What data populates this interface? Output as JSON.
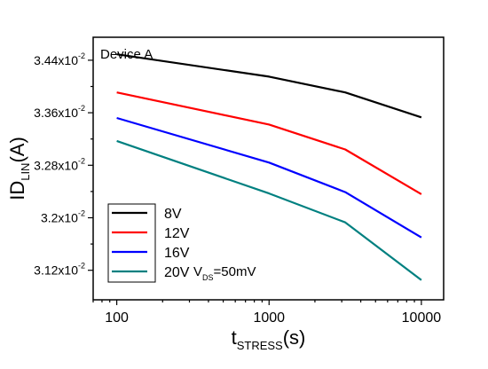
{
  "chart_data": {
    "type": "line",
    "title": "",
    "xlabel": {
      "main": "t",
      "sub": "STRESS",
      "unit": "(s)"
    },
    "ylabel": {
      "main": "ID",
      "sub": "LIN",
      "unit": "(A)"
    },
    "xscale": "log",
    "xlim": [
      70,
      14000
    ],
    "ylim": [
      0.03075,
      0.03475
    ],
    "grid": false,
    "xticks": [
      {
        "value": 100,
        "label": "100"
      },
      {
        "value": 1000,
        "label": "1000"
      },
      {
        "value": 10000,
        "label": "10000"
      }
    ],
    "yticks": [
      {
        "value": 0.0312,
        "mant": "3.12x10",
        "exp": "-2"
      },
      {
        "value": 0.032,
        "mant": "3.2x10",
        "exp": "-2"
      },
      {
        "value": 0.0328,
        "mant": "3.28x10",
        "exp": "-2"
      },
      {
        "value": 0.0336,
        "mant": "3.36x10",
        "exp": "-2"
      },
      {
        "value": 0.0344,
        "mant": "3.44x10",
        "exp": "-2"
      }
    ],
    "annotation_device": "Device A",
    "annotation_vds": {
      "main": "V",
      "sub": "DS",
      "rest": "=50mV"
    },
    "legend_position": "bottom-left",
    "series": [
      {
        "name": "8V",
        "color": "#000000",
        "x": [
          100,
          1000,
          3162,
          10000
        ],
        "y": [
          0.03449,
          0.03415,
          0.03391,
          0.03353
        ]
      },
      {
        "name": "12V",
        "color": "#ff0000",
        "x": [
          100,
          1000,
          3162,
          10000
        ],
        "y": [
          0.03391,
          0.03342,
          0.03304,
          0.03236
        ]
      },
      {
        "name": "16V",
        "color": "#0000ff",
        "x": [
          100,
          1000,
          3162,
          10000
        ],
        "y": [
          0.03352,
          0.03284,
          0.03239,
          0.0317
        ]
      },
      {
        "name": "20V",
        "color": "#008080",
        "x": [
          100,
          1000,
          3162,
          10000
        ],
        "y": [
          0.03317,
          0.03237,
          0.03193,
          0.03105
        ]
      }
    ]
  }
}
